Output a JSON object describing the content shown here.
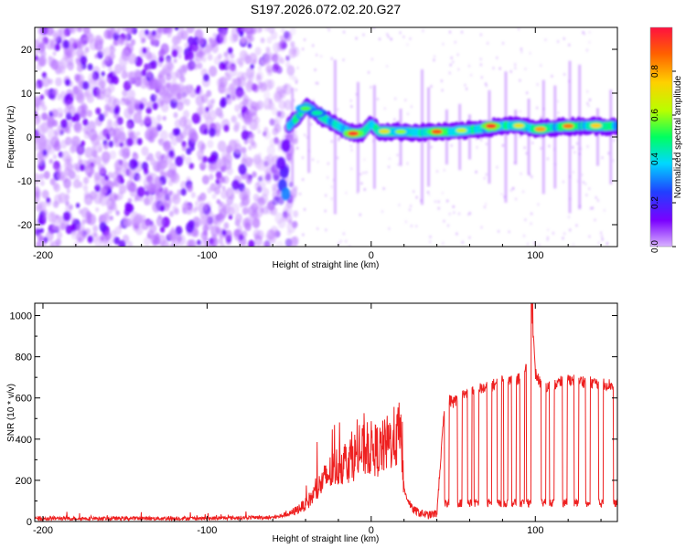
{
  "title": "S197.2026.072.02.20.G27",
  "chart_data": [
    {
      "type": "heatmap",
      "xlabel": "Height of straight line (km)",
      "ylabel": "Frequency (Hz)",
      "xlim": [
        -205,
        150
      ],
      "ylim": [
        -25,
        25
      ],
      "xticks": [
        -200,
        -100,
        0,
        100
      ],
      "xtick_labels": [
        "-200",
        "-100",
        "0",
        "100"
      ],
      "yticks": [
        -20,
        -10,
        0,
        10,
        20
      ],
      "ytick_labels": [
        "-20",
        "-10",
        "0",
        "10",
        "20"
      ],
      "colorbar": {
        "label": "Normalized spectral amplitude",
        "range": [
          0,
          1
        ],
        "ticks": [
          0.0,
          0.2,
          0.4,
          0.6,
          0.8
        ],
        "tick_labels": [
          "0.0",
          "0.2",
          "0.4",
          "0.6",
          "0.8"
        ],
        "colors": [
          "#d9b3ff",
          "#7a00ff",
          "#2040ff",
          "#00d8ff",
          "#00ff60",
          "#b8ff00",
          "#ffd000",
          "#ff6000",
          "#ff1040"
        ]
      },
      "noise_region": [
        -205,
        -50
      ],
      "ridge": [
        [
          -50,
          2.5
        ],
        [
          -45,
          4.5
        ],
        [
          -40,
          7
        ],
        [
          -35,
          6
        ],
        [
          -30,
          4.5
        ],
        [
          -25,
          3.5
        ],
        [
          -20,
          2.5
        ],
        [
          -15,
          1.5
        ],
        [
          -10,
          0.8
        ],
        [
          -5,
          1
        ],
        [
          0,
          3
        ],
        [
          5,
          1.2
        ],
        [
          10,
          1.2
        ],
        [
          20,
          1.2
        ],
        [
          30,
          1.0
        ],
        [
          40,
          1.2
        ],
        [
          50,
          1.2
        ],
        [
          60,
          1.6
        ],
        [
          70,
          2.0
        ],
        [
          80,
          2.6
        ],
        [
          90,
          2.6
        ],
        [
          100,
          1.8
        ],
        [
          110,
          2.2
        ],
        [
          120,
          2.4
        ],
        [
          130,
          2.6
        ],
        [
          140,
          2.4
        ],
        [
          150,
          2.6
        ]
      ],
      "hot_spots": [
        {
          "x": -40,
          "y": 6.5,
          "amplitude": 0.55
        },
        {
          "x": -33,
          "y": 5.5,
          "amplitude": 0.45
        },
        {
          "x": -11,
          "y": 0.8,
          "amplitude": 0.95
        },
        {
          "x": 8,
          "y": 1.3,
          "amplitude": 0.7
        },
        {
          "x": 18,
          "y": 1.2,
          "amplitude": 0.6
        },
        {
          "x": 40,
          "y": 1.2,
          "amplitude": 0.9
        },
        {
          "x": 55,
          "y": 1.5,
          "amplitude": 0.65
        },
        {
          "x": 73,
          "y": 2.5,
          "amplitude": 0.95
        },
        {
          "x": 90,
          "y": 2.6,
          "amplitude": 0.7
        },
        {
          "x": 103,
          "y": 1.8,
          "amplitude": 0.8
        },
        {
          "x": 120,
          "y": 2.5,
          "amplitude": 0.85
        },
        {
          "x": 137,
          "y": 2.6,
          "amplitude": 0.75
        }
      ]
    },
    {
      "type": "line",
      "xlabel": "Height of straight line (km)",
      "ylabel": "SNR (10 * v/v)",
      "xlim": [
        -205,
        150
      ],
      "ylim": [
        0,
        1060
      ],
      "xticks": [
        -200,
        -100,
        0,
        100
      ],
      "xtick_labels": [
        "-200",
        "-100",
        "0",
        "100"
      ],
      "yticks": [
        0,
        200,
        400,
        600,
        800,
        1000
      ],
      "ytick_labels": [
        "0",
        "200",
        "400",
        "600",
        "800",
        "1000"
      ],
      "color": "#ee2020",
      "series": [
        {
          "name": "SNR",
          "x": [
            -205,
            -150,
            -100,
            -70,
            -60,
            -50,
            -45,
            -40,
            -35,
            -30,
            -25,
            -20,
            -15,
            -10,
            -5,
            0,
            5,
            10,
            15,
            18,
            20,
            25,
            30,
            35,
            40,
            45,
            50,
            60,
            70,
            80,
            90,
            95,
            98,
            100,
            105,
            110,
            120,
            130,
            140,
            150
          ],
          "y": [
            15,
            15,
            15,
            20,
            20,
            30,
            50,
            70,
            110,
            160,
            200,
            230,
            250,
            270,
            290,
            300,
            290,
            320,
            350,
            300,
            150,
            60,
            40,
            30,
            40,
            600,
            580,
            630,
            650,
            680,
            690,
            760,
            1000,
            720,
            640,
            660,
            690,
            680,
            670,
            660
          ]
        }
      ],
      "dropout_floor": 90,
      "dropout_positions": [
        46,
        54,
        60,
        64,
        72,
        78,
        82,
        87,
        92,
        96,
        105,
        110,
        118,
        125,
        132,
        140,
        149
      ]
    }
  ]
}
